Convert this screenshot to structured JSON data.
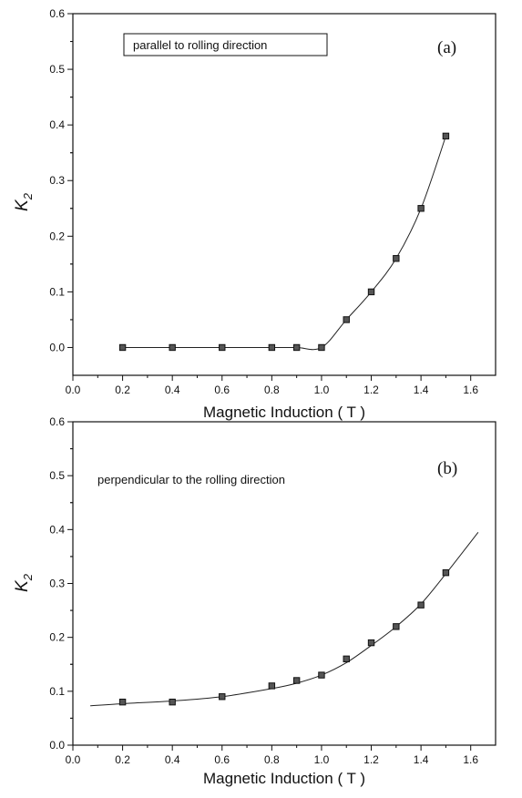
{
  "chart_data": [
    {
      "type": "line",
      "panel_label": "(a)",
      "annotation": "parallel to rolling direction",
      "annotation_boxed": true,
      "xlabel": "Magnetic Induction ( T )",
      "ylabel": "K",
      "ylabel_sub": "2",
      "xlim": [
        0.0,
        1.7
      ],
      "ylim": [
        -0.05,
        0.6
      ],
      "xticks": [
        "0.0",
        "0.2",
        "0.4",
        "0.6",
        "0.8",
        "1.0",
        "1.2",
        "1.4",
        "1.6"
      ],
      "yticks": [
        "0.0",
        "0.1",
        "0.2",
        "0.3",
        "0.4",
        "0.5",
        "0.6"
      ],
      "points": {
        "x": [
          0.2,
          0.4,
          0.6,
          0.8,
          0.9,
          1.0,
          1.1,
          1.2,
          1.3,
          1.4,
          1.5
        ],
        "y": [
          0.0,
          0.0,
          0.0,
          0.0,
          0.0,
          0.0,
          0.05,
          0.1,
          0.16,
          0.25,
          0.38
        ]
      },
      "curve": {
        "x": [
          0.2,
          0.4,
          0.6,
          0.8,
          0.9,
          1.0,
          1.1,
          1.2,
          1.3,
          1.4,
          1.5
        ],
        "y": [
          0.0,
          0.0,
          0.0,
          0.0,
          0.0,
          0.0,
          0.05,
          0.1,
          0.16,
          0.25,
          0.38
        ]
      },
      "grid": false
    },
    {
      "type": "line",
      "panel_label": "(b)",
      "annotation": "perpendicular to the rolling direction",
      "annotation_boxed": false,
      "xlabel": "Magnetic Induction ( T )",
      "ylabel": "K",
      "ylabel_sub": "2",
      "xlim": [
        0.0,
        1.7
      ],
      "ylim": [
        0.0,
        0.6
      ],
      "xticks": [
        "0.0",
        "0.2",
        "0.4",
        "0.6",
        "0.8",
        "1.0",
        "1.2",
        "1.4",
        "1.6"
      ],
      "yticks": [
        "0.0",
        "0.1",
        "0.2",
        "0.3",
        "0.4",
        "0.5",
        "0.6"
      ],
      "points": {
        "x": [
          0.2,
          0.4,
          0.6,
          0.8,
          0.9,
          1.0,
          1.1,
          1.2,
          1.3,
          1.4,
          1.5
        ],
        "y": [
          0.08,
          0.08,
          0.09,
          0.11,
          0.12,
          0.13,
          0.16,
          0.19,
          0.22,
          0.26,
          0.32
        ]
      },
      "curve": {
        "x": [
          0.07,
          0.2,
          0.4,
          0.6,
          0.8,
          0.9,
          1.0,
          1.1,
          1.2,
          1.3,
          1.4,
          1.5,
          1.63
        ],
        "y": [
          0.073,
          0.077,
          0.082,
          0.09,
          0.105,
          0.115,
          0.13,
          0.153,
          0.185,
          0.22,
          0.262,
          0.318,
          0.395
        ]
      },
      "grid": false
    }
  ]
}
